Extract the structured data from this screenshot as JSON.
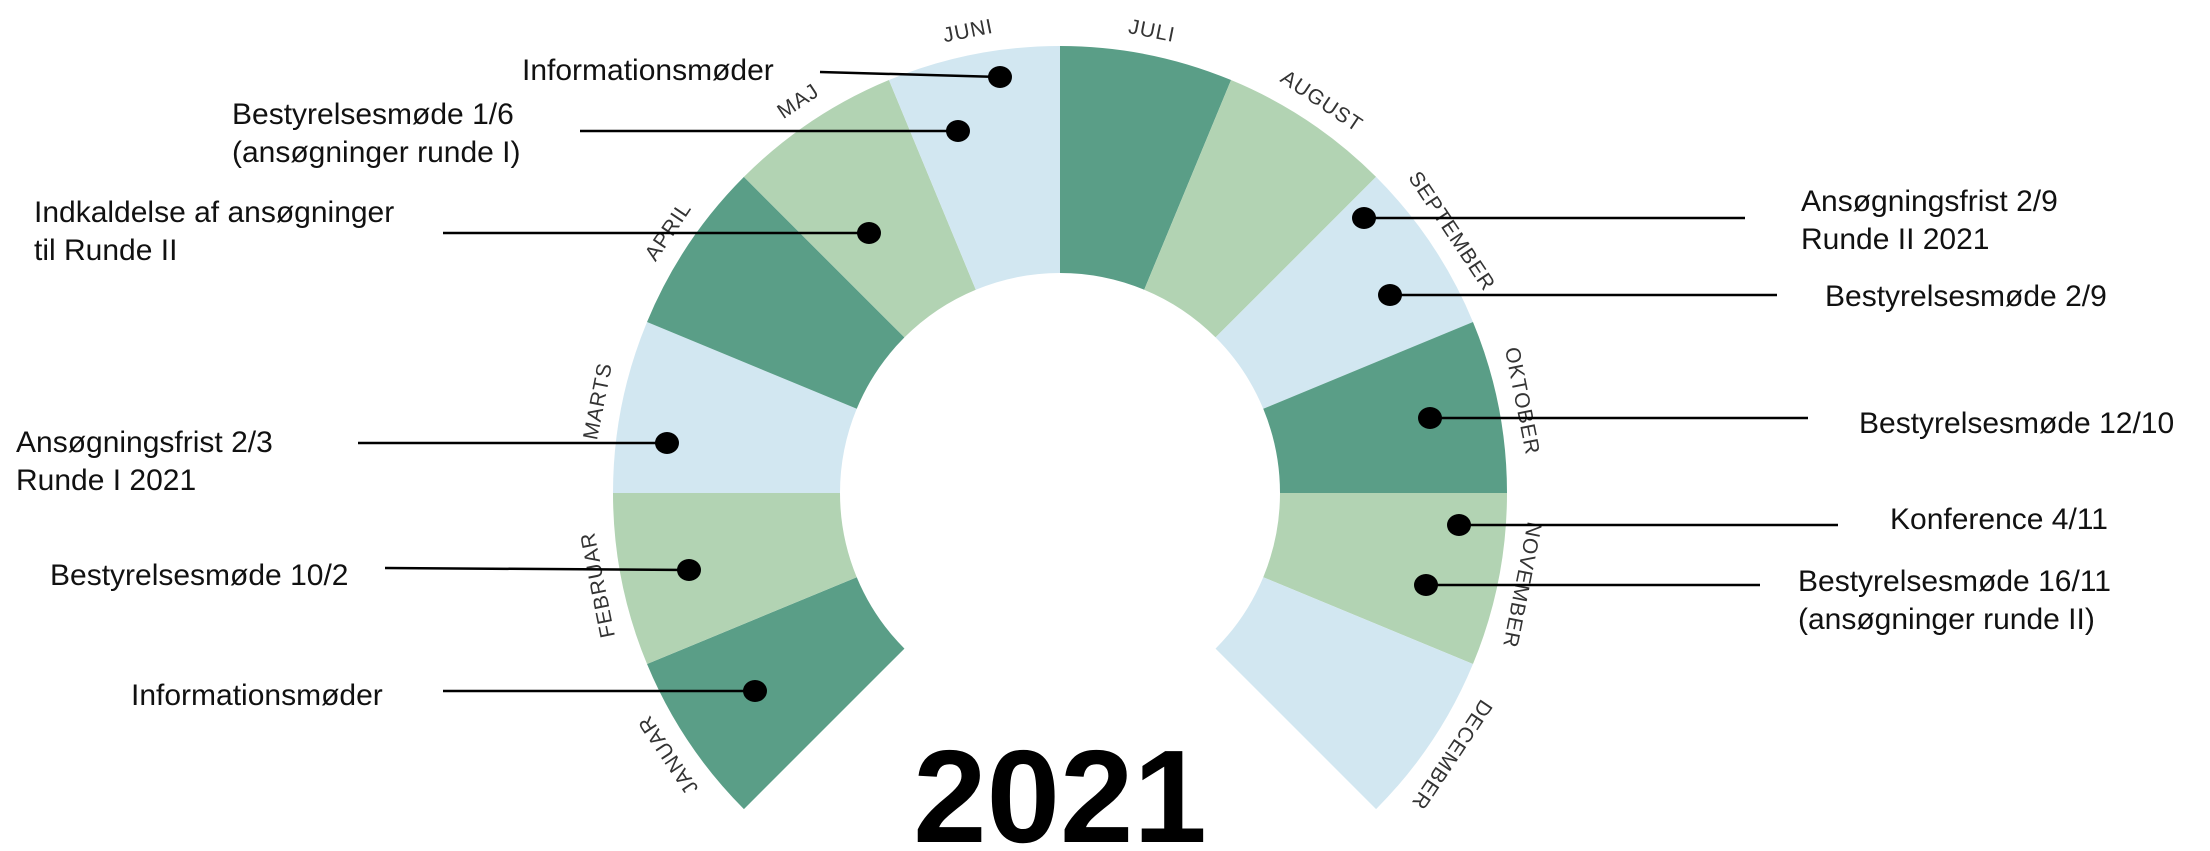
{
  "year": "2021",
  "colors": {
    "dark_green": "#5a9e87",
    "light_green": "#b2d3b3",
    "light_blue": "#d2e7f1"
  },
  "months": [
    {
      "name": "JANUAR",
      "color": "dark_green"
    },
    {
      "name": "FEBRUAR",
      "color": "light_green"
    },
    {
      "name": "MARTS",
      "color": "light_blue"
    },
    {
      "name": "APRIL",
      "color": "dark_green"
    },
    {
      "name": "MAJ",
      "color": "light_green"
    },
    {
      "name": "JUNI",
      "color": "light_blue"
    },
    {
      "name": "JULI",
      "color": "dark_green"
    },
    {
      "name": "AUGUST",
      "color": "light_green"
    },
    {
      "name": "SEPTEMBER",
      "color": "light_blue"
    },
    {
      "name": "OKTOBER",
      "color": "dark_green"
    },
    {
      "name": "NOVEMBER",
      "color": "light_green"
    },
    {
      "name": "DECEMBER",
      "color": "light_blue"
    }
  ],
  "events": [
    {
      "name": "event-informationsmoder-juni",
      "month": "JUNI",
      "lines": [
        "Informationsmøder"
      ]
    },
    {
      "name": "event-bestyrelsesmode-1-6",
      "month": "JUNI",
      "lines": [
        "Bestyrelsesmøde 1/6",
        "(ansøgninger runde I)"
      ]
    },
    {
      "name": "event-indkaldelse",
      "month": "MAJ",
      "lines": [
        "Indkaldelse af ansøgninger",
        "til Runde II"
      ]
    },
    {
      "name": "event-ansogningsfrist-2-3",
      "month": "MARTS",
      "lines": [
        "Ansøgningsfrist 2/3",
        "Runde I 2021"
      ]
    },
    {
      "name": "event-bestyrelsesmode-10-2",
      "month": "FEBRUAR",
      "lines": [
        "Bestyrelsesmøde 10/2"
      ]
    },
    {
      "name": "event-informationsmoder-januar",
      "month": "JANUAR",
      "lines": [
        "Informationsmøder"
      ]
    },
    {
      "name": "event-ansogningsfrist-2-9",
      "month": "SEPTEMBER",
      "lines": [
        "Ansøgningsfrist 2/9",
        "Runde II 2021"
      ]
    },
    {
      "name": "event-bestyrelsesmode-2-9",
      "month": "SEPTEMBER",
      "lines": [
        "Bestyrelsesmøde 2/9"
      ]
    },
    {
      "name": "event-bestyrelsesmode-12-10",
      "month": "OKTOBER",
      "lines": [
        "Bestyrelsesmøde 12/10"
      ]
    },
    {
      "name": "event-konference-4-11",
      "month": "NOVEMBER",
      "lines": [
        "Konference 4/11"
      ]
    },
    {
      "name": "event-bestyrelsesmode-16-11",
      "month": "NOVEMBER",
      "lines": [
        "Bestyrelsesmøde 16/11",
        "(ansøgninger runde II)"
      ]
    }
  ]
}
